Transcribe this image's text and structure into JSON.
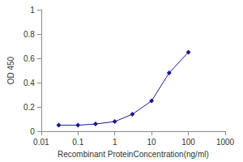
{
  "chart_data": {
    "type": "line",
    "xlabel": "Recombinant ProteinConcentration(ng/ml)",
    "ylabel": "OD 450",
    "x": [
      0.03,
      0.1,
      0.3,
      1,
      3,
      10,
      30,
      100
    ],
    "values": [
      0.05,
      0.05,
      0.06,
      0.08,
      0.14,
      0.25,
      0.48,
      0.65
    ],
    "xlim": [
      0.01,
      1000
    ],
    "xticks": [
      0.01,
      0.1,
      1,
      10,
      100,
      1000
    ],
    "ylim": [
      0,
      1
    ],
    "yticks": [
      0,
      0.2,
      0.4,
      0.6,
      0.8,
      1
    ],
    "log": "x",
    "grid": false,
    "color": "#1a1a8c",
    "marker": "diamond"
  }
}
